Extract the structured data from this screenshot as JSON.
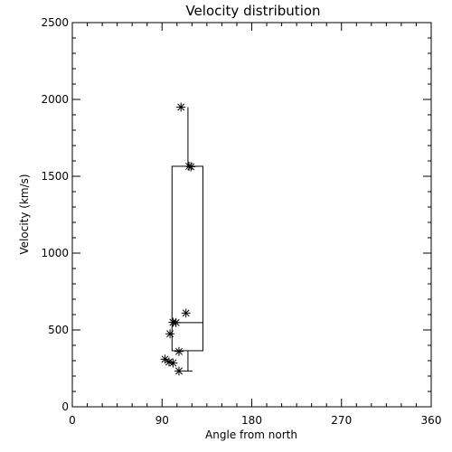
{
  "chart_data": {
    "type": "scatter",
    "title": "Velocity distribution",
    "xlabel": "Angle from north",
    "ylabel": "Velocity (km/s)",
    "xlim": [
      0,
      360
    ],
    "ylim": [
      0,
      2500
    ],
    "xticks": [
      0,
      90,
      180,
      270,
      360
    ],
    "yticks": [
      0,
      500,
      1000,
      1500,
      2000,
      2500
    ],
    "grid": false,
    "points": [
      {
        "x": 109,
        "y": 1950
      },
      {
        "x": 117,
        "y": 1565
      },
      {
        "x": 119,
        "y": 1562
      },
      {
        "x": 114,
        "y": 610
      },
      {
        "x": 101,
        "y": 550
      },
      {
        "x": 104,
        "y": 548
      },
      {
        "x": 98,
        "y": 475
      },
      {
        "x": 107,
        "y": 360
      },
      {
        "x": 93,
        "y": 310
      },
      {
        "x": 97,
        "y": 292
      },
      {
        "x": 101,
        "y": 285
      },
      {
        "x": 107,
        "y": 233
      }
    ],
    "boxplot": {
      "x_range": [
        100,
        131
      ],
      "whisker_x": 116,
      "whisker_low": 233,
      "q1": 365,
      "median": 548,
      "q3": 1565,
      "whisker_high": 1950
    }
  }
}
